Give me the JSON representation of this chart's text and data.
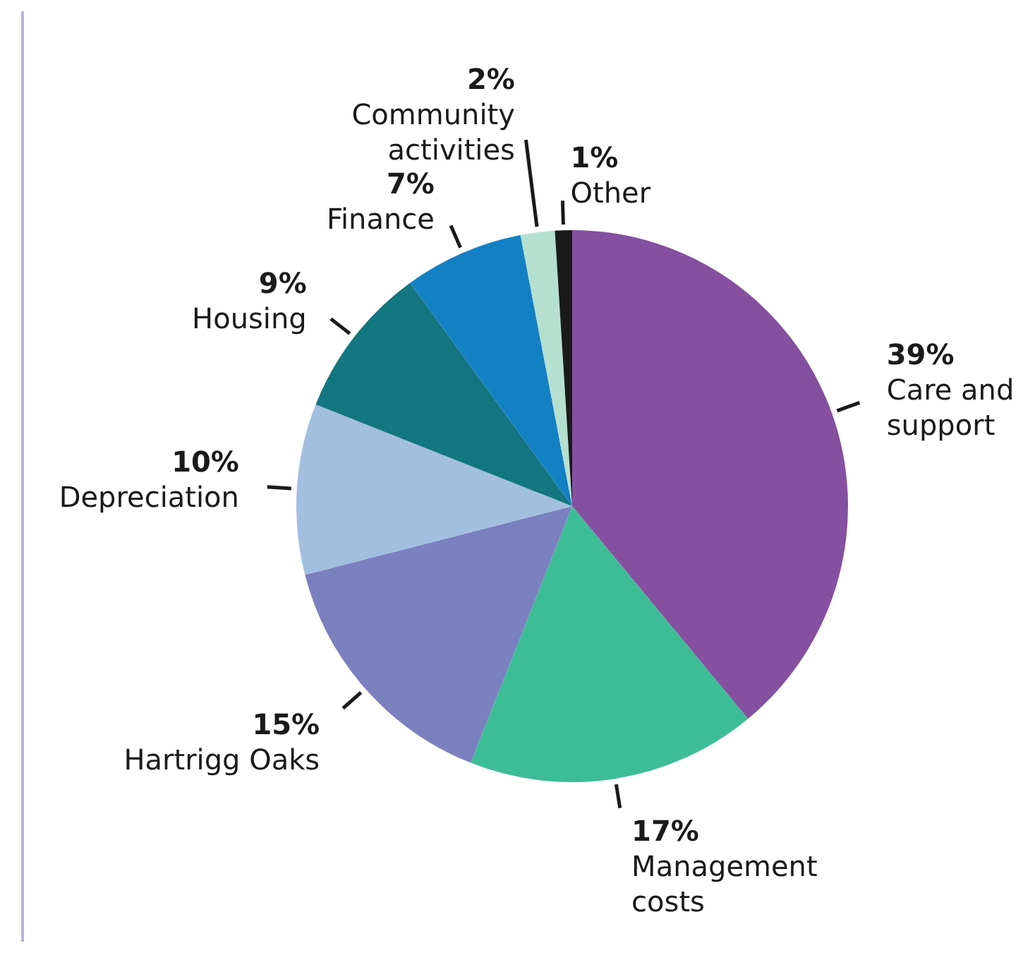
{
  "chart_data": {
    "type": "pie",
    "categories": [
      "Care and support",
      "Management costs",
      "Hartrigg Oaks",
      "Depreciation",
      "Housing",
      "Finance",
      "Community activities",
      "Other"
    ],
    "values": [
      39,
      17,
      15,
      10,
      9,
      7,
      2,
      1
    ],
    "colors": [
      "#8550a0",
      "#3dbd96",
      "#7b80bf",
      "#a3bfe0",
      "#137680",
      "#1480c4",
      "#b5e0d0",
      "#1a1a1a"
    ],
    "value_labels": [
      "39%",
      "17%",
      "15%",
      "10%",
      "9%",
      "7%",
      "2%",
      "1%"
    ],
    "legend": false
  }
}
